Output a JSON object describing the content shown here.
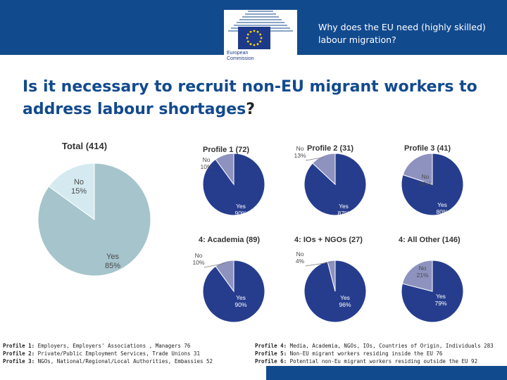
{
  "header": {
    "title": "Why does the EU need (highly skilled) labour migration?",
    "logo_text_line1": "European",
    "logo_text_line2": "Commission"
  },
  "main_title": "Is it necessary to recruit non-EU migrant workers to address labour shortages",
  "main_title_mark": "?",
  "colors": {
    "header_blue": "#124A8E",
    "total_yes": "#A5C4CB",
    "total_no": "#D4EAF0",
    "profile_yes": "#263D8E",
    "profile_no": "#8E92BF"
  },
  "chart_data": [
    {
      "type": "pie",
      "title": "Total (414)",
      "categories": [
        "Yes",
        "No"
      ],
      "values": [
        85,
        15
      ],
      "labels": [
        "85%",
        "15%"
      ]
    },
    {
      "type": "pie",
      "title": "Profile 1 (72)",
      "categories": [
        "Yes",
        "No"
      ],
      "values": [
        90,
        10
      ],
      "labels": [
        "90%",
        "10%"
      ]
    },
    {
      "type": "pie",
      "title": "Profile 2 (31)",
      "categories": [
        "Yes",
        "No"
      ],
      "values": [
        87,
        13
      ],
      "labels": [
        "87%",
        "13%"
      ]
    },
    {
      "type": "pie",
      "title": "Profile 3 (41)",
      "categories": [
        "Yes",
        "No"
      ],
      "values": [
        80,
        20
      ],
      "labels": [
        "80%",
        "20%"
      ]
    },
    {
      "type": "pie",
      "title": "4: Academia (89)",
      "categories": [
        "Yes",
        "No"
      ],
      "values": [
        90,
        10
      ],
      "labels": [
        "90%",
        "10%"
      ]
    },
    {
      "type": "pie",
      "title": "4: IOs + NGOs (27)",
      "categories": [
        "Yes",
        "No"
      ],
      "values": [
        96,
        4
      ],
      "labels": [
        "96%",
        "4%"
      ]
    },
    {
      "type": "pie",
      "title": "4: All Other (146)",
      "categories": [
        "Yes",
        "No"
      ],
      "values": [
        79,
        21
      ],
      "labels": [
        "79%",
        "21%"
      ]
    }
  ],
  "legend": {
    "left": [
      {
        "key": "Profile 1:",
        "text": " Employers, Employers' Associations , Managers 76"
      },
      {
        "key": "Profile 2:",
        "text": " Private/Public Employment Services, Trade Unions 31"
      },
      {
        "key": "Profile 3:",
        "text": " NGOs, National/Regional/Local Authorities, Embassies 52"
      }
    ],
    "right": [
      {
        "key": "Profile 4:",
        "text": " Media, Academia, NGOs, IOs, Countries of Origin, Individuals 283"
      },
      {
        "key": "Profile 5:",
        "text": " Non-EU migrant workers residing inside the EU 76"
      },
      {
        "key": "Profile 6:",
        "text": " Potential non-Eu migrant workers residing outside the EU 92"
      }
    ]
  }
}
